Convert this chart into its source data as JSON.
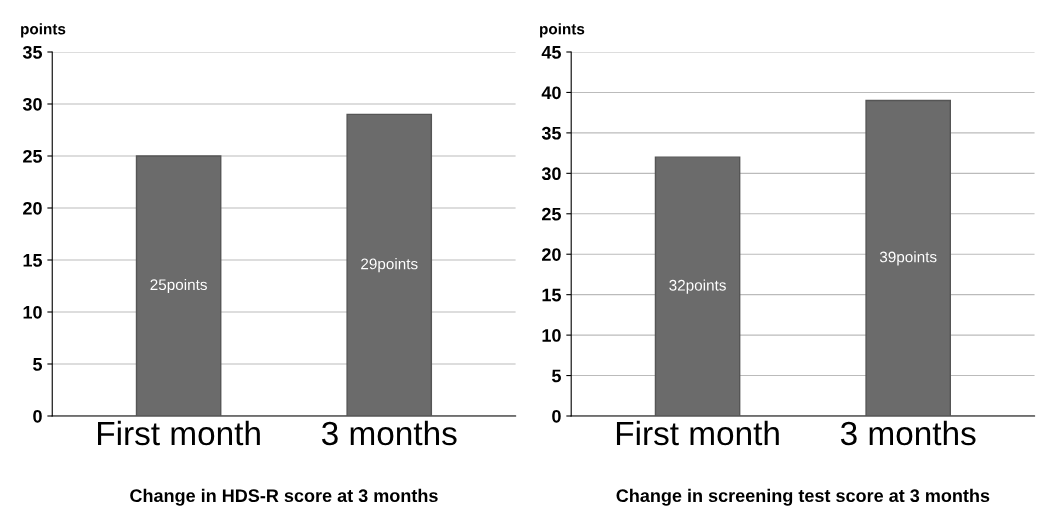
{
  "chart_data": [
    {
      "type": "bar",
      "title": "Change in HDS-R score at 3 months",
      "ylabel": "points",
      "categories": [
        "First month",
        "3 months"
      ],
      "values": [
        25,
        29
      ],
      "value_labels": [
        "25points",
        "29points"
      ],
      "color": "#6b6b6b",
      "ylim": [
        0,
        35
      ],
      "yticks": [
        0,
        5,
        10,
        15,
        20,
        25,
        30,
        35
      ],
      "grid": "y"
    },
    {
      "type": "bar",
      "title": "Change in screening test score at 3 months",
      "ylabel": "points",
      "categories": [
        "First month",
        "3 months"
      ],
      "values": [
        32,
        39
      ],
      "value_labels": [
        "32points",
        "39points"
      ],
      "color": "#6b6b6b",
      "ylim": [
        0,
        45
      ],
      "yticks": [
        0,
        5,
        10,
        15,
        20,
        25,
        30,
        35,
        40,
        45
      ],
      "grid": "y"
    }
  ]
}
